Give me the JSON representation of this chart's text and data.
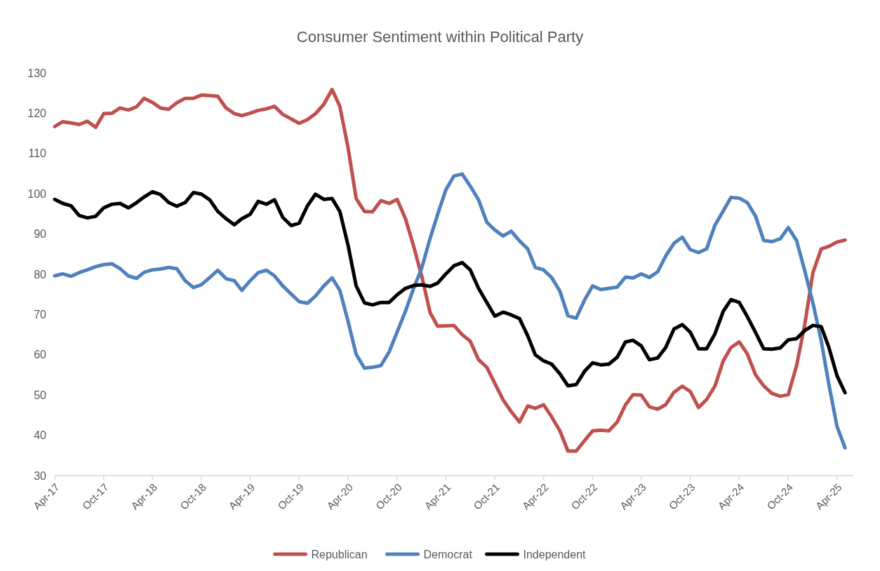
{
  "chart_data": {
    "type": "line",
    "title": "Consumer Sentiment within Political Party",
    "x": [
      "2017-04",
      "2017-05",
      "2017-06",
      "2017-07",
      "2017-08",
      "2017-09",
      "2017-10",
      "2017-11",
      "2017-12",
      "2018-01",
      "2018-02",
      "2018-03",
      "2018-04",
      "2018-05",
      "2018-06",
      "2018-07",
      "2018-08",
      "2018-09",
      "2018-10",
      "2018-11",
      "2018-12",
      "2019-01",
      "2019-02",
      "2019-03",
      "2019-04",
      "2019-05",
      "2019-06",
      "2019-07",
      "2019-08",
      "2019-09",
      "2019-10",
      "2019-11",
      "2019-12",
      "2020-01",
      "2020-02",
      "2020-03",
      "2020-04",
      "2020-05",
      "2020-06",
      "2020-07",
      "2020-08",
      "2020-09",
      "2020-10",
      "2020-11",
      "2020-12",
      "2021-01",
      "2021-02",
      "2021-03",
      "2021-04",
      "2021-05",
      "2021-06",
      "2021-07",
      "2021-08",
      "2021-09",
      "2021-10",
      "2021-11",
      "2021-12",
      "2022-01",
      "2022-02",
      "2022-03",
      "2022-04",
      "2022-05",
      "2022-06",
      "2022-07",
      "2022-08",
      "2022-09",
      "2022-10",
      "2022-11",
      "2022-12",
      "2023-01",
      "2023-02",
      "2023-03",
      "2023-04",
      "2023-05",
      "2023-06",
      "2023-07",
      "2023-08",
      "2023-09",
      "2023-10",
      "2023-11",
      "2023-12",
      "2024-01",
      "2024-02",
      "2024-03",
      "2024-04",
      "2024-05",
      "2024-06",
      "2024-07",
      "2024-08",
      "2024-09",
      "2024-10",
      "2024-11",
      "2024-12",
      "2025-01",
      "2025-02",
      "2025-03",
      "2025-04",
      "2025-05"
    ],
    "series": [
      {
        "name": "Republican",
        "color": "#c0504d",
        "values": [
          116.7,
          117.9,
          117.6,
          117.2,
          118.0,
          116.5,
          119.9,
          120.0,
          121.3,
          120.8,
          121.6,
          123.7,
          122.7,
          121.3,
          121.0,
          122.6,
          123.7,
          123.7,
          124.5,
          124.4,
          124.2,
          121.3,
          119.9,
          119.4,
          120.0,
          120.7,
          121.1,
          121.7,
          119.7,
          118.6,
          117.5,
          118.4,
          119.9,
          122.2,
          125.9,
          121.7,
          111.3,
          98.8,
          95.6,
          95.5,
          98.3,
          97.6,
          98.6,
          93.8,
          87.1,
          79.5,
          70.5,
          67.1,
          67.2,
          67.3,
          65.0,
          63.4,
          58.8,
          56.9,
          52.9,
          48.8,
          45.9,
          43.3,
          47.3,
          46.7,
          47.6,
          44.6,
          41.1,
          36.1,
          36.1,
          38.7,
          41.1,
          41.3,
          41.1,
          43.3,
          47.6,
          50.1,
          50.0,
          47.1,
          46.5,
          47.6,
          50.7,
          52.2,
          50.9,
          46.9,
          48.9,
          52.2,
          58.5,
          61.8,
          63.2,
          60.2,
          55.0,
          52.3,
          50.4,
          49.7,
          50.1,
          57.3,
          67.3,
          80.4,
          86.3,
          86.9,
          88.0,
          88.5
        ]
      },
      {
        "name": "Democrat",
        "color": "#4f81bd",
        "values": [
          79.6,
          80.1,
          79.5,
          80.4,
          81.1,
          81.9,
          82.4,
          82.6,
          81.4,
          79.6,
          79.0,
          80.5,
          81.1,
          81.3,
          81.7,
          81.4,
          78.4,
          76.7,
          77.4,
          79.2,
          81.0,
          78.9,
          78.4,
          76.0,
          78.4,
          80.4,
          81.0,
          79.6,
          77.1,
          75.1,
          73.2,
          72.8,
          74.6,
          77.1,
          79.1,
          76.0,
          68.2,
          60.1,
          56.7,
          56.9,
          57.3,
          60.7,
          65.7,
          70.8,
          76.4,
          81.6,
          88.9,
          94.8,
          101.0,
          104.4,
          104.9,
          101.9,
          98.5,
          92.9,
          91.0,
          89.5,
          90.7,
          88.3,
          86.3,
          81.7,
          81.1,
          79.2,
          75.8,
          69.7,
          69.1,
          73.6,
          77.1,
          76.2,
          76.5,
          76.8,
          79.3,
          79.1,
          80.1,
          79.2,
          80.6,
          84.5,
          87.7,
          89.2,
          86.1,
          85.4,
          86.3,
          92.2,
          95.7,
          99.1,
          98.9,
          97.8,
          94.4,
          88.4,
          88.1,
          88.8,
          91.6,
          88.4,
          81.0,
          72.9,
          63.5,
          52.9,
          42.2,
          36.9
        ]
      },
      {
        "name": "Independent",
        "color": "#000000",
        "values": [
          98.6,
          97.6,
          97.0,
          94.6,
          94.0,
          94.4,
          96.5,
          97.4,
          97.6,
          96.5,
          97.8,
          99.2,
          100.5,
          99.8,
          97.8,
          96.9,
          97.8,
          100.3,
          99.9,
          98.5,
          95.6,
          93.8,
          92.3,
          93.8,
          94.9,
          98.1,
          97.4,
          98.5,
          94.1,
          92.1,
          92.7,
          97.0,
          99.9,
          98.6,
          98.8,
          95.6,
          87.1,
          77.1,
          72.9,
          72.4,
          73.0,
          73.0,
          74.9,
          76.5,
          77.2,
          77.4,
          77.0,
          77.8,
          80.1,
          82.1,
          82.9,
          81.1,
          76.5,
          73.0,
          69.6,
          70.6,
          69.9,
          69.0,
          64.7,
          60.0,
          58.5,
          57.7,
          55.3,
          52.3,
          52.6,
          55.9,
          58.0,
          57.5,
          57.7,
          59.4,
          63.2,
          63.6,
          62.2,
          58.8,
          59.2,
          61.8,
          66.4,
          67.5,
          65.6,
          61.5,
          61.5,
          65.2,
          70.8,
          73.7,
          73.0,
          69.5,
          65.5,
          61.5,
          61.4,
          61.7,
          63.7,
          64.0,
          66.0,
          67.3,
          67.0,
          62.0,
          54.8,
          50.6
        ]
      }
    ],
    "xlim": [
      "2017-04",
      "2025-06"
    ],
    "xticks": [
      {
        "value": "2017-04",
        "label": "Apr-17"
      },
      {
        "value": "2017-10",
        "label": "Oct-17"
      },
      {
        "value": "2018-04",
        "label": "Apr-18"
      },
      {
        "value": "2018-10",
        "label": "Oct-18"
      },
      {
        "value": "2019-04",
        "label": "Apr-19"
      },
      {
        "value": "2019-10",
        "label": "Oct-19"
      },
      {
        "value": "2020-04",
        "label": "Apr-20"
      },
      {
        "value": "2020-10",
        "label": "Oct-20"
      },
      {
        "value": "2021-04",
        "label": "Apr-21"
      },
      {
        "value": "2021-10",
        "label": "Oct-21"
      },
      {
        "value": "2022-04",
        "label": "Apr-22"
      },
      {
        "value": "2022-10",
        "label": "Oct-22"
      },
      {
        "value": "2023-04",
        "label": "Apr-23"
      },
      {
        "value": "2023-10",
        "label": "Oct-23"
      },
      {
        "value": "2024-04",
        "label": "Apr-24"
      },
      {
        "value": "2024-10",
        "label": "Oct-24"
      },
      {
        "value": "2025-04",
        "label": "Apr-25"
      }
    ],
    "ylim": [
      30,
      130
    ],
    "yticks": [
      30,
      40,
      50,
      60,
      70,
      80,
      90,
      100,
      110,
      120,
      130
    ],
    "grid": false,
    "legend": "bottom",
    "marker": "none",
    "line_style": "solid"
  }
}
